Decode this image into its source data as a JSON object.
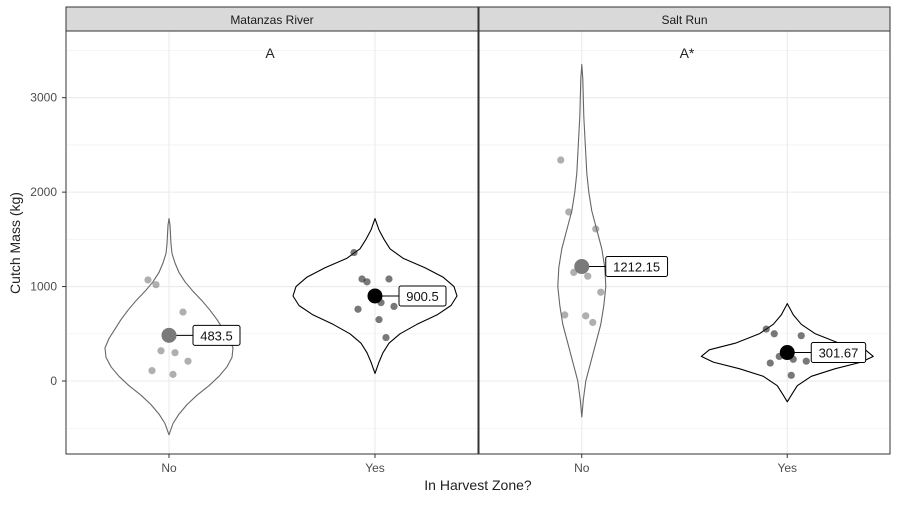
{
  "chart_data": {
    "type": "violin",
    "xlabel": "In Harvest Zone?",
    "ylabel": "Cutch Mass (kg)",
    "ylim": [
      -760,
      3600
    ],
    "y_ticks": [
      0,
      1000,
      2000,
      3000
    ],
    "categories": [
      "No",
      "Yes"
    ],
    "grid": true,
    "panels": [
      {
        "name": "Matanzas River",
        "annotation": "A",
        "groups": [
          {
            "category": "No",
            "mean": 483.5,
            "mean_label": "483.5",
            "points": [
              1070,
              1020,
              730,
              320,
              300,
              210,
              110,
              70
            ],
            "violin": {
              "min": -570,
              "max": 1720,
              "widths": [
                [
                  -570,
                  0
                ],
                [
                  -450,
                  4
                ],
                [
                  -350,
                  10
                ],
                [
                  -250,
                  18
                ],
                [
                  -150,
                  28
                ],
                [
                  -50,
                  40
                ],
                [
                  50,
                  50
                ],
                [
                  150,
                  58
                ],
                [
                  250,
                  63
                ],
                [
                  350,
                  64
                ],
                [
                  450,
                  60
                ],
                [
                  550,
                  54
                ],
                [
                  650,
                  48
                ],
                [
                  750,
                  41
                ],
                [
                  850,
                  33
                ],
                [
                  950,
                  24
                ],
                [
                  1050,
                  16
                ],
                [
                  1150,
                  10
                ],
                [
                  1250,
                  6
                ],
                [
                  1350,
                  3
                ],
                [
                  1450,
                  2
                ],
                [
                  1550,
                  1.5
                ],
                [
                  1650,
                  1
                ],
                [
                  1720,
                  0
                ]
              ]
            }
          },
          {
            "category": "Yes",
            "mean": 900.5,
            "mean_label": "900.5",
            "points": [
              1360,
              1080,
              1080,
              1050,
              830,
              790,
              760,
              650,
              460
            ],
            "violin": {
              "min": 80,
              "max": 1720,
              "widths": [
                [
                  80,
                  0
                ],
                [
                  200,
                  4
                ],
                [
                  300,
                  8
                ],
                [
                  400,
                  14
                ],
                [
                  500,
                  25
                ],
                [
                  600,
                  42
                ],
                [
                  700,
                  62
                ],
                [
                  800,
                  76
                ],
                [
                  900,
                  82
                ],
                [
                  1000,
                  79
                ],
                [
                  1100,
                  68
                ],
                [
                  1200,
                  50
                ],
                [
                  1300,
                  28
                ],
                [
                  1400,
                  15
                ],
                [
                  1500,
                  9
                ],
                [
                  1600,
                  4
                ],
                [
                  1720,
                  0
                ]
              ]
            }
          }
        ]
      },
      {
        "name": "Salt Run",
        "annotation": "A*",
        "groups": [
          {
            "category": "No",
            "mean": 1212.15,
            "mean_label": "1212.15",
            "points": [
              2340,
              1790,
              1610,
              1150,
              1110,
              940,
              700,
              690,
              620
            ],
            "violin": {
              "min": -380,
              "max": 3350,
              "widths": [
                [
                  -380,
                  0
                ],
                [
                  -200,
                  1.5
                ],
                [
                  0,
                  4
                ],
                [
                  200,
                  9
                ],
                [
                  400,
                  14
                ],
                [
                  600,
                  19
                ],
                [
                  800,
                  22
                ],
                [
                  1000,
                  24
                ],
                [
                  1200,
                  23
                ],
                [
                  1400,
                  20
                ],
                [
                  1600,
                  15
                ],
                [
                  1800,
                  10
                ],
                [
                  2000,
                  7
                ],
                [
                  2200,
                  5
                ],
                [
                  2400,
                  4
                ],
                [
                  2600,
                  3
                ],
                [
                  2800,
                  2
                ],
                [
                  3000,
                  1.5
                ],
                [
                  3200,
                  1
                ],
                [
                  3350,
                  0
                ]
              ]
            }
          },
          {
            "category": "Yes",
            "mean": 301.67,
            "mean_label": "301.67",
            "points": [
              550,
              500,
              480,
              260,
              230,
              210,
              190,
              60
            ],
            "violin": {
              "min": -220,
              "max": 820,
              "widths": [
                [
                  -220,
                  0
                ],
                [
                  -150,
                  4
                ],
                [
                  -50,
                  10
                ],
                [
                  50,
                  24
                ],
                [
                  130,
                  48
                ],
                [
                  200,
                  74
                ],
                [
                  260,
                  86
                ],
                [
                  330,
                  78
                ],
                [
                  400,
                  52
                ],
                [
                  500,
                  28
                ],
                [
                  600,
                  14
                ],
                [
                  700,
                  6
                ],
                [
                  820,
                  0
                ]
              ]
            }
          }
        ]
      }
    ]
  }
}
